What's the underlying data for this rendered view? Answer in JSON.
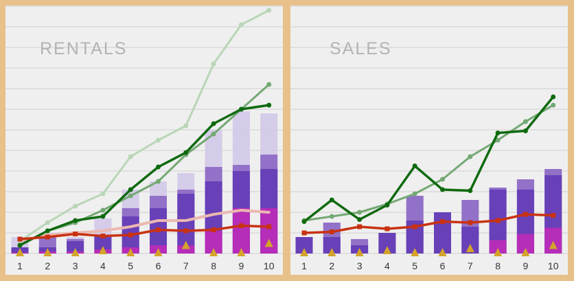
{
  "colors": {
    "background": "#e8c08a",
    "panel": "#efefef",
    "bar_outer": "#d3c9e8",
    "bar_mid": "#8e6bc6",
    "bar_inner": "#6840b8",
    "bar_base": "#b52db8",
    "line_light_green": "#b9d6b6",
    "line_mid_green": "#74a874",
    "line_dark_green": "#0f6a0f",
    "line_pink": "#ebb8b0",
    "line_red": "#c83212",
    "marker_gold": "#d4a42a"
  },
  "chart_data": [
    {
      "type": "bar",
      "title": "RENTALS",
      "categories": [
        "1",
        "2",
        "3",
        "4",
        "5",
        "6",
        "7",
        "8",
        "9",
        "10"
      ],
      "ylim": [
        0,
        12
      ],
      "grid": true,
      "bars_outer": [
        0.8,
        0.8,
        0.8,
        1.7,
        3.1,
        3.5,
        3.9,
        6.0,
        6.9,
        6.8
      ],
      "bars_mid": [
        0.3,
        0.8,
        0.7,
        0.8,
        2.2,
        2.8,
        3.1,
        4.2,
        4.3,
        4.8
      ],
      "bars_inner": [
        0.3,
        0.3,
        0.6,
        0.9,
        1.8,
        2.2,
        2.9,
        3.5,
        4.0,
        4.1
      ],
      "bars_base": [
        0.05,
        0.1,
        0.1,
        0.2,
        0.3,
        0.4,
        0.4,
        1.1,
        2.2,
        2.2
      ],
      "line_light_green": [
        0.6,
        1.5,
        2.3,
        2.9,
        4.7,
        5.5,
        6.2,
        9.2,
        11.1,
        11.8
      ],
      "line_mid_green": [
        0.4,
        1.1,
        1.5,
        2.1,
        2.8,
        3.5,
        4.8,
        5.8,
        7.0,
        8.2
      ],
      "line_dark_green": [
        0.4,
        1.1,
        1.6,
        1.8,
        3.1,
        4.2,
        4.9,
        6.3,
        7.0,
        7.2
      ],
      "line_pink": [
        0.6,
        0.9,
        1.0,
        1.1,
        1.3,
        1.6,
        1.6,
        1.9,
        2.1,
        2.0
      ],
      "line_red": [
        0.7,
        0.8,
        0.95,
        0.85,
        0.9,
        1.15,
        1.1,
        1.15,
        1.35,
        1.3
      ],
      "markers_gold": [
        0,
        0,
        0,
        0.1,
        0,
        0,
        0.35,
        0,
        0,
        0.45
      ]
    },
    {
      "type": "bar",
      "title": "SALES",
      "categories": [
        "1",
        "2",
        "3",
        "4",
        "5",
        "6",
        "7",
        "8",
        "9",
        "10"
      ],
      "ylim": [
        0,
        12
      ],
      "grid": true,
      "bars_outer": [
        0.8,
        1.5,
        0.7,
        1.0,
        2.8,
        2.0,
        2.6,
        3.2,
        3.6,
        4.1
      ],
      "bars_mid": [
        0.8,
        1.5,
        0.7,
        1.0,
        2.8,
        2.0,
        2.6,
        3.2,
        3.6,
        4.1
      ],
      "bars_inner": [
        0.8,
        0.8,
        0.4,
        1.0,
        1.6,
        2.0,
        1.3,
        3.1,
        3.1,
        3.8
      ],
      "bars_base": [
        0,
        0,
        0,
        0,
        0,
        0,
        0,
        0.65,
        0.95,
        1.25
      ],
      "line_mid_green": [
        1.6,
        1.8,
        2.0,
        2.4,
        2.9,
        3.6,
        4.7,
        5.5,
        6.4,
        7.2
      ],
      "line_dark_green": [
        1.55,
        2.6,
        1.65,
        2.35,
        4.25,
        3.1,
        3.05,
        5.85,
        5.95,
        7.6
      ],
      "line_red": [
        1.0,
        1.05,
        1.3,
        1.2,
        1.3,
        1.55,
        1.5,
        1.6,
        1.9,
        1.85
      ],
      "markers_gold": [
        0,
        0,
        0,
        0.1,
        0,
        0,
        0.2,
        0,
        0,
        0.35
      ]
    }
  ]
}
